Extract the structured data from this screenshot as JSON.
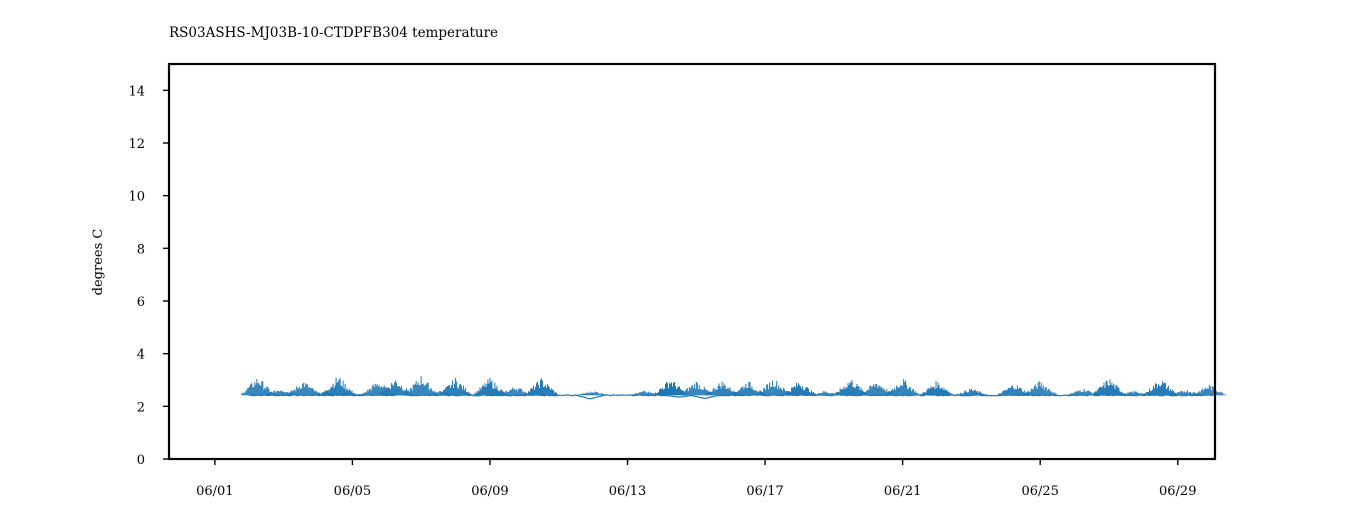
{
  "chart_data": {
    "type": "line",
    "title": "RS03ASHS-MJ03B-10-CTDPFB304 temperature",
    "xlabel": "",
    "ylabel": "degrees C",
    "xlim": [
      "2021-05-30T16:00",
      "2021-06-30T02:00"
    ],
    "ylim": [
      0,
      15
    ],
    "grid": false,
    "x_ticks": [
      "06/01",
      "06/05",
      "06/09",
      "06/13",
      "06/17",
      "06/21",
      "06/25",
      "06/29"
    ],
    "x_tick_dates": [
      "2021-06-01",
      "2021-06-05",
      "2021-06-09",
      "2021-06-13",
      "2021-06-17",
      "2021-06-21",
      "2021-06-25",
      "2021-06-29"
    ],
    "y_ticks": [
      0,
      2,
      4,
      6,
      8,
      10,
      12,
      14
    ],
    "series": [
      {
        "color": "#1f77b4",
        "data_start": "2021-06-02T00:00",
        "data_end": "2021-06-30T02:00",
        "baseline": 2.42,
        "spikes": [
          {
            "x": "2021-06-02T06:00",
            "y": 3.15
          },
          {
            "x": "2021-06-02T22:00",
            "y": 2.7
          },
          {
            "x": "2021-06-03T14:00",
            "y": 3.0
          },
          {
            "x": "2021-06-04T06:00",
            "y": 2.6
          },
          {
            "x": "2021-06-04T14:00",
            "y": 3.2
          },
          {
            "x": "2021-06-04T22:00",
            "y": 2.55
          },
          {
            "x": "2021-06-05T18:00",
            "y": 3.0
          },
          {
            "x": "2021-06-06T06:00",
            "y": 3.1
          },
          {
            "x": "2021-06-07T00:00",
            "y": 3.2
          },
          {
            "x": "2021-06-07T14:00",
            "y": 2.6
          },
          {
            "x": "2021-06-08T00:00",
            "y": 3.1
          },
          {
            "x": "2021-06-09T00:00",
            "y": 3.1
          },
          {
            "x": "2021-06-09T18:00",
            "y": 2.8
          },
          {
            "x": "2021-06-10T12:00",
            "y": 3.1
          },
          {
            "x": "2021-06-12T00:00",
            "y": 2.6
          },
          {
            "x": "2021-06-13T12:00",
            "y": 2.6
          },
          {
            "x": "2021-06-14T06:00",
            "y": 3.1
          },
          {
            "x": "2021-06-15T00:00",
            "y": 3.0
          },
          {
            "x": "2021-06-15T18:00",
            "y": 3.0
          },
          {
            "x": "2021-06-16T12:00",
            "y": 3.0
          },
          {
            "x": "2021-06-17T06:00",
            "y": 3.1
          },
          {
            "x": "2021-06-18T00:00",
            "y": 3.0
          },
          {
            "x": "2021-06-18T18:00",
            "y": 2.6
          },
          {
            "x": "2021-06-19T12:00",
            "y": 3.1
          },
          {
            "x": "2021-06-20T06:00",
            "y": 3.0
          },
          {
            "x": "2021-06-21T00:00",
            "y": 3.1
          },
          {
            "x": "2021-06-22T00:00",
            "y": 3.0
          },
          {
            "x": "2021-06-23T00:00",
            "y": 2.7
          },
          {
            "x": "2021-06-24T06:00",
            "y": 2.9
          },
          {
            "x": "2021-06-25T00:00",
            "y": 3.0
          },
          {
            "x": "2021-06-26T06:00",
            "y": 2.7
          },
          {
            "x": "2021-06-27T00:00",
            "y": 3.1
          },
          {
            "x": "2021-06-27T18:00",
            "y": 2.6
          },
          {
            "x": "2021-06-28T12:00",
            "y": 3.1
          },
          {
            "x": "2021-06-29T06:00",
            "y": 2.65
          },
          {
            "x": "2021-06-29T22:00",
            "y": 2.85
          }
        ],
        "dips": [
          {
            "x": "2021-06-11T22:00",
            "y": 2.28
          },
          {
            "x": "2021-06-14T12:00",
            "y": 2.35
          },
          {
            "x": "2021-06-15T06:00",
            "y": 2.3
          }
        ]
      }
    ]
  }
}
